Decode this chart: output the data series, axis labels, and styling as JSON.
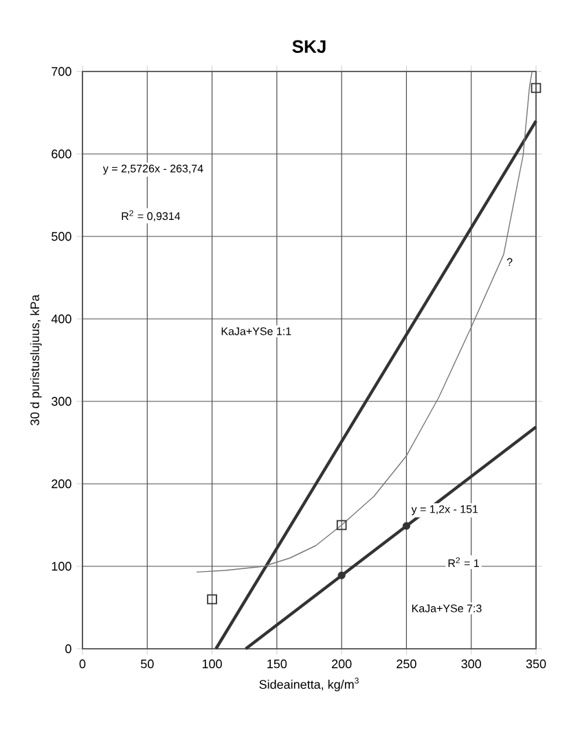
{
  "chart_data": {
    "type": "line",
    "title": "SKJ",
    "xlabel": "Sideainetta, kg/m$^{3}$",
    "ylabel": "30 d puristuslujuus, kPa",
    "xlim": [
      0,
      350
    ],
    "ylim": [
      0,
      700
    ],
    "xticks": [
      0,
      50,
      100,
      150,
      200,
      250,
      300,
      350
    ],
    "yticks": [
      0,
      100,
      200,
      300,
      400,
      500,
      600,
      700
    ],
    "grid": true,
    "series": [
      {
        "type": "scatter",
        "marker": "square",
        "color": "#333333",
        "x": [
          100,
          200,
          350
        ],
        "values": [
          60,
          150,
          680
        ]
      },
      {
        "marker": "none",
        "color": "#333333",
        "x": [
          103,
          350
        ],
        "values": [
          0,
          640
        ]
      },
      {
        "type": "scatter",
        "marker": "circle",
        "color": "#333333",
        "x": [
          200,
          250
        ],
        "values": [
          89,
          149
        ]
      },
      {
        "marker": "none",
        "color": "#333333",
        "x": [
          126,
          350
        ],
        "values": [
          0,
          269
        ]
      },
      {
        "marker": "none",
        "color": "#777777",
        "x": [
          88,
          110,
          140,
          160,
          180,
          200,
          225,
          250,
          275,
          300,
          325,
          340,
          345,
          347
        ],
        "values": [
          93,
          95,
          100,
          110,
          125,
          150,
          185,
          234,
          305,
          390,
          478,
          598,
          682,
          700
        ]
      }
    ],
    "annotations": [
      "y = 2,5726x - 263,74",
      "R$^{2}$ = 0,9314",
      "KaJa+YSe 1:1",
      "y = 1,2x - 151",
      "R$^{2}$ = 1",
      "KaJa+YSe 7:3",
      "?"
    ]
  }
}
